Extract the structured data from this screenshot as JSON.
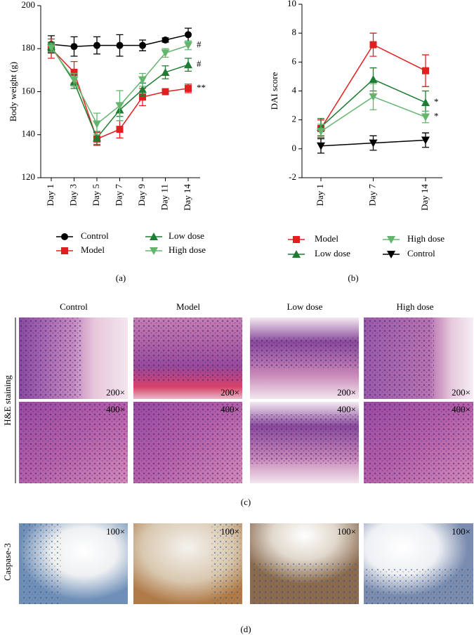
{
  "chart_data": [
    {
      "type": "line",
      "panel_label": "(a)",
      "ylabel": "Body weight (g)",
      "categories": [
        "Day 1",
        "Day 3",
        "Day 5",
        "Day 7",
        "Day 9",
        "Day 11",
        "Day 14"
      ],
      "ylim": [
        120,
        200
      ],
      "yticks": [
        120,
        140,
        160,
        180,
        200
      ],
      "series": [
        {
          "name": "Control",
          "color": "#000000",
          "marker": "circle",
          "values": [
            182,
            181,
            181.5,
            181.5,
            181.5,
            184,
            186.5
          ],
          "errors": [
            4,
            4.5,
            4,
            5,
            2.5,
            1,
            3
          ]
        },
        {
          "name": "Model",
          "color": "#e0201e",
          "marker": "square",
          "values": [
            180,
            169,
            138,
            142.5,
            157.5,
            160,
            161.5
          ],
          "errors": [
            4.5,
            5,
            3,
            4,
            4,
            1,
            2
          ]
        },
        {
          "name": "Low dose",
          "color": "#1e7d32",
          "marker": "triangle-up",
          "values": [
            181,
            164.5,
            138.5,
            151.5,
            161,
            169,
            172.5
          ],
          "errors": [
            2,
            3,
            3,
            3,
            3,
            3,
            3
          ]
        },
        {
          "name": "High dose",
          "color": "#63b56e",
          "marker": "triangle-down",
          "values": [
            180.5,
            165.5,
            145,
            153.5,
            165.5,
            178,
            181.5
          ],
          "errors": [
            2,
            3,
            5,
            7,
            3,
            2,
            2
          ]
        }
      ],
      "annotations": [
        "#",
        "#",
        "**"
      ]
    },
    {
      "type": "line",
      "panel_label": "(b)",
      "ylabel": "DAI score",
      "categories": [
        "Day 1",
        "Day 7",
        "Day 14"
      ],
      "ylim": [
        -2,
        10
      ],
      "yticks": [
        -2,
        0,
        2,
        4,
        6,
        8,
        10
      ],
      "series": [
        {
          "name": "Model",
          "color": "#e0201e",
          "marker": "square",
          "values": [
            1.4,
            7.2,
            5.4
          ],
          "errors": [
            0.6,
            0.8,
            1.1
          ]
        },
        {
          "name": "Low dose",
          "color": "#1e7d32",
          "marker": "triangle-up",
          "values": [
            1.5,
            4.8,
            3.2
          ],
          "errors": [
            0.6,
            0.8,
            0.8
          ]
        },
        {
          "name": "High dose",
          "color": "#63b56e",
          "marker": "triangle-down",
          "values": [
            1.2,
            3.6,
            2.2
          ],
          "errors": [
            0.5,
            0.9,
            0.4
          ]
        },
        {
          "name": "Control",
          "color": "#000000",
          "marker": "triangle-down",
          "values": [
            0.2,
            0.4,
            0.6
          ],
          "errors": [
            0.5,
            0.5,
            0.5
          ]
        }
      ],
      "annotations": [
        "*",
        "*"
      ]
    }
  ],
  "histology": {
    "columns": [
      "Control",
      "Model",
      "Low dose",
      "High dose"
    ],
    "he_label": "H&E staining",
    "he_row1_mag": [
      "200×",
      "200×",
      "200×",
      "200×"
    ],
    "he_row2_mag": [
      "400×",
      "400×",
      "400×",
      "400×"
    ],
    "he_panel_label": "(c)",
    "caspase_label": "Caspase-3",
    "caspase_mag": [
      "100×",
      "100×",
      "100×",
      "100×"
    ],
    "caspase_panel_label": "(d)"
  }
}
